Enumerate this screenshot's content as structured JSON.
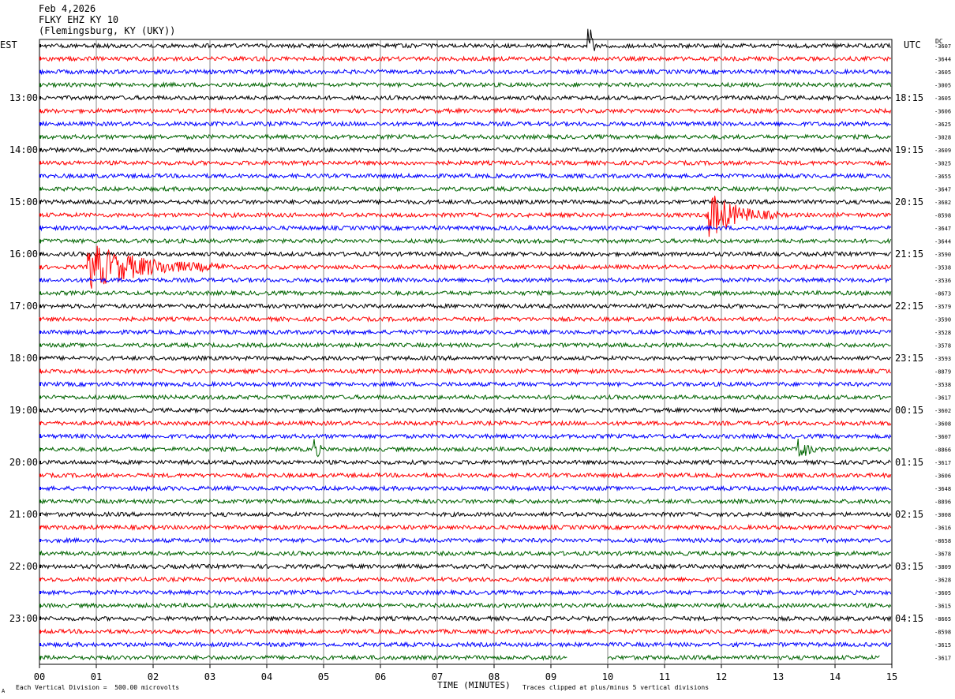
{
  "header": {
    "date": "Feb 4,2026",
    "station": "FLKY EHZ KY 10",
    "location": "(Flemingsburg, KY (UKY))"
  },
  "left_label": "EST",
  "right_label": "UTC",
  "dc_label": "DC",
  "footer": {
    "division": "Each Vertical Division =  500.00 microvolts",
    "clip": "Traces clipped at plus/minus 5 vertical divisions",
    "mark": "A"
  },
  "chart_data": {
    "type": "line",
    "title": "",
    "xlabel": "TIME (MINUTES)",
    "xlim": [
      0,
      15
    ],
    "x_ticks": [
      "00",
      "01",
      "02",
      "03",
      "04",
      "05",
      "06",
      "07",
      "08",
      "09",
      "10",
      "11",
      "12",
      "13",
      "14",
      "15"
    ],
    "trace_colors": [
      "#000000",
      "#ff0000",
      "#0000ff",
      "#006400"
    ],
    "left_hour_labels": [
      "13:00",
      "14:00",
      "15:00",
      "16:00",
      "17:00",
      "18:00",
      "19:00",
      "20:00",
      "21:00",
      "22:00",
      "23:00"
    ],
    "right_hour_labels": [
      "18:15",
      "19:15",
      "20:15",
      "21:15",
      "22:15",
      "23:15",
      "00:15",
      "01:15",
      "02:15",
      "03:15",
      "04:15"
    ],
    "row_offsets": [
      "-3607",
      "-3644",
      "-3605",
      "-3005",
      "-3605",
      "-3606",
      "-3625",
      "-3028",
      "-3609",
      "-3025",
      "-3655",
      "-3647",
      "-3682",
      "-8598",
      "-3647",
      "-3644",
      "-3590",
      "-3538",
      "-3536",
      "-8673",
      "-3579",
      "-3590",
      "-3528",
      "-3578",
      "-3593",
      "-8879",
      "-3538",
      "-3617",
      "-3602",
      "-3608",
      "-3607",
      "-8866",
      "-3617",
      "-3606",
      "-3648",
      "-8896",
      "-3008",
      "-3616",
      "-8658",
      "-3678",
      "-3809",
      "-3628",
      "-3605",
      "-3615",
      "-8665",
      "-8598",
      "-3615",
      "-3617"
    ],
    "events": [
      {
        "row": 0,
        "minute": 9.7,
        "amplitude": 2.5,
        "duration": 0.1
      },
      {
        "row": 13,
        "minute": 11.8,
        "amplitude": 3.5,
        "duration": 1.2
      },
      {
        "row": 17,
        "minute": 0.9,
        "amplitude": 3.5,
        "duration": 2.4
      },
      {
        "row": 31,
        "minute": 4.85,
        "amplitude": 2.0,
        "duration": 0.1
      },
      {
        "row": 31,
        "minute": 13.4,
        "amplitude": 1.5,
        "duration": 0.3
      }
    ],
    "last_trace_gaps": [
      [
        9.3,
        10.0
      ],
      [
        14.8,
        15.0
      ]
    ]
  }
}
